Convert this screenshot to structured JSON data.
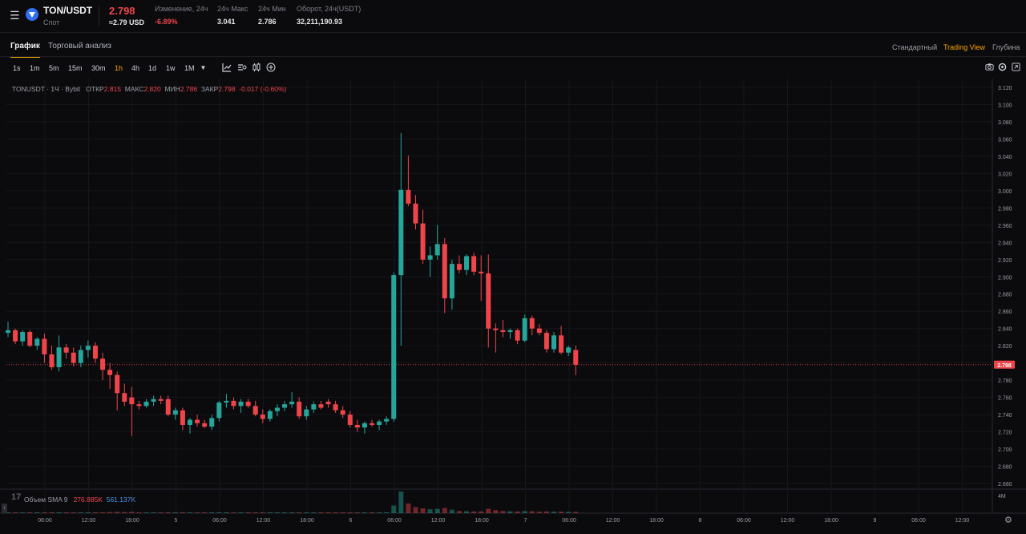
{
  "header": {
    "menu_icon": "menu-icon",
    "pair": "TON/USDT",
    "type": "Спот",
    "last_price": "2.798",
    "usd_price": "≈2.79 USD",
    "stats": [
      {
        "label": "Изменение, 24ч",
        "value": "-6.89%",
        "color": "red"
      },
      {
        "label": "24ч Макс",
        "value": "3.041",
        "color": "white"
      },
      {
        "label": "24ч Мин",
        "value": "2.786",
        "color": "white"
      },
      {
        "label": "Оборот, 24ч(USDT)",
        "value": "32,211,190.93",
        "color": "white"
      }
    ]
  },
  "tabs": [
    "График",
    "Торговый анализ"
  ],
  "views": [
    "Стандартный",
    "Trading View",
    "Глубина"
  ],
  "timeframes": [
    "1s",
    "1m",
    "5m",
    "15m",
    "30m",
    "1h",
    "4h",
    "1d",
    "1w",
    "1M"
  ],
  "active_timeframe": "1h",
  "toolbar_icons": [
    "indicator-icon",
    "bar-style-icon",
    "candle-style-icon",
    "add-icon"
  ],
  "right_icons": [
    "camera-icon",
    "settings-icon",
    "fullscreen-icon"
  ],
  "legend": {
    "symbol": "TONUSDT · 1Ч · Bybit",
    "open_label": "ОТКР",
    "open": "2.815",
    "high_label": "МАКС",
    "high": "2.820",
    "low_label": "МИН",
    "low": "2.786",
    "close_label": "ЗАКР",
    "close": "2.798",
    "change": "-0.017 (-0.60%)"
  },
  "volume_legend": {
    "label": "Объем SMA 9",
    "value1": "276.885K",
    "value2": "561.137K"
  },
  "tv_badge": "17",
  "colors": {
    "up": "#26a69a",
    "down": "#ef454a",
    "accent": "#f7a600",
    "bg": "#0b0b0e"
  },
  "chart_data": {
    "type": "candlestick",
    "timeframe": "1h",
    "price_axis_ticks": [
      "3.120",
      "3.100",
      "3.080",
      "3.060",
      "3.040",
      "3.020",
      "3.000",
      "2.980",
      "2.960",
      "2.940",
      "2.920",
      "2.900",
      "2.880",
      "2.860",
      "2.840",
      "2.820",
      "2.800",
      "2.780",
      "2.760",
      "2.740",
      "2.720",
      "2.700",
      "2.680",
      "2.660"
    ],
    "ylim": [
      2.655,
      3.125
    ],
    "current_price_label": "2.798",
    "current_price": 2.798,
    "volume_axis_label": "4M",
    "time_axis_labels": [
      "06:00",
      "12:00",
      "18:00",
      "5",
      "06:00",
      "12:00",
      "18:00",
      "6",
      "06:00",
      "12:00",
      "18:00",
      "7",
      "06:00",
      "12:00",
      "18:00",
      "8",
      "06:00",
      "12:00",
      "18:00",
      "9",
      "06:00",
      "12:00"
    ],
    "candles": [
      {
        "o": 2.835,
        "h": 2.848,
        "l": 2.83,
        "c": 2.838
      },
      {
        "o": 2.838,
        "h": 2.84,
        "l": 2.822,
        "c": 2.825
      },
      {
        "o": 2.825,
        "h": 2.838,
        "l": 2.82,
        "c": 2.836
      },
      {
        "o": 2.836,
        "h": 2.838,
        "l": 2.818,
        "c": 2.82
      },
      {
        "o": 2.82,
        "h": 2.83,
        "l": 2.815,
        "c": 2.828
      },
      {
        "o": 2.828,
        "h": 2.834,
        "l": 2.8,
        "c": 2.81
      },
      {
        "o": 2.81,
        "h": 2.82,
        "l": 2.792,
        "c": 2.795
      },
      {
        "o": 2.795,
        "h": 2.832,
        "l": 2.79,
        "c": 2.818
      },
      {
        "o": 2.818,
        "h": 2.822,
        "l": 2.805,
        "c": 2.812
      },
      {
        "o": 2.812,
        "h": 2.818,
        "l": 2.796,
        "c": 2.8
      },
      {
        "o": 2.8,
        "h": 2.82,
        "l": 2.795,
        "c": 2.815
      },
      {
        "o": 2.815,
        "h": 2.826,
        "l": 2.806,
        "c": 2.82
      },
      {
        "o": 2.82,
        "h": 2.824,
        "l": 2.8,
        "c": 2.805
      },
      {
        "o": 2.805,
        "h": 2.812,
        "l": 2.78,
        "c": 2.792
      },
      {
        "o": 2.792,
        "h": 2.8,
        "l": 2.77,
        "c": 2.786
      },
      {
        "o": 2.786,
        "h": 2.79,
        "l": 2.745,
        "c": 2.765
      },
      {
        "o": 2.765,
        "h": 2.776,
        "l": 2.75,
        "c": 2.755
      },
      {
        "o": 2.76,
        "h": 2.772,
        "l": 2.715,
        "c": 2.752
      },
      {
        "o": 2.752,
        "h": 2.756,
        "l": 2.746,
        "c": 2.75
      },
      {
        "o": 2.75,
        "h": 2.758,
        "l": 2.748,
        "c": 2.755
      },
      {
        "o": 2.755,
        "h": 2.762,
        "l": 2.75,
        "c": 2.758
      },
      {
        "o": 2.758,
        "h": 2.762,
        "l": 2.752,
        "c": 2.756
      },
      {
        "o": 2.758,
        "h": 2.762,
        "l": 2.738,
        "c": 2.74
      },
      {
        "o": 2.74,
        "h": 2.748,
        "l": 2.734,
        "c": 2.745
      },
      {
        "o": 2.745,
        "h": 2.748,
        "l": 2.722,
        "c": 2.728
      },
      {
        "o": 2.728,
        "h": 2.736,
        "l": 2.718,
        "c": 2.734
      },
      {
        "o": 2.734,
        "h": 2.74,
        "l": 2.726,
        "c": 2.73
      },
      {
        "o": 2.73,
        "h": 2.734,
        "l": 2.724,
        "c": 2.726
      },
      {
        "o": 2.726,
        "h": 2.74,
        "l": 2.722,
        "c": 2.736
      },
      {
        "o": 2.736,
        "h": 2.756,
        "l": 2.732,
        "c": 2.754
      },
      {
        "o": 2.754,
        "h": 2.764,
        "l": 2.748,
        "c": 2.756
      },
      {
        "o": 2.756,
        "h": 2.76,
        "l": 2.746,
        "c": 2.75
      },
      {
        "o": 2.75,
        "h": 2.758,
        "l": 2.742,
        "c": 2.755
      },
      {
        "o": 2.755,
        "h": 2.758,
        "l": 2.748,
        "c": 2.75
      },
      {
        "o": 2.75,
        "h": 2.756,
        "l": 2.738,
        "c": 2.74
      },
      {
        "o": 2.74,
        "h": 2.746,
        "l": 2.73,
        "c": 2.735
      },
      {
        "o": 2.735,
        "h": 2.746,
        "l": 2.732,
        "c": 2.744
      },
      {
        "o": 2.744,
        "h": 2.752,
        "l": 2.738,
        "c": 2.748
      },
      {
        "o": 2.748,
        "h": 2.756,
        "l": 2.744,
        "c": 2.752
      },
      {
        "o": 2.752,
        "h": 2.766,
        "l": 2.748,
        "c": 2.755
      },
      {
        "o": 2.755,
        "h": 2.76,
        "l": 2.735,
        "c": 2.738
      },
      {
        "o": 2.738,
        "h": 2.75,
        "l": 2.734,
        "c": 2.746
      },
      {
        "o": 2.746,
        "h": 2.755,
        "l": 2.742,
        "c": 2.752
      },
      {
        "o": 2.752,
        "h": 2.756,
        "l": 2.746,
        "c": 2.748
      },
      {
        "o": 2.755,
        "h": 2.758,
        "l": 2.748,
        "c": 2.752
      },
      {
        "o": 2.752,
        "h": 2.756,
        "l": 2.742,
        "c": 2.745
      },
      {
        "o": 2.745,
        "h": 2.75,
        "l": 2.736,
        "c": 2.74
      },
      {
        "o": 2.74,
        "h": 2.744,
        "l": 2.725,
        "c": 2.728
      },
      {
        "o": 2.728,
        "h": 2.734,
        "l": 2.72,
        "c": 2.725
      },
      {
        "o": 2.725,
        "h": 2.732,
        "l": 2.718,
        "c": 2.73
      },
      {
        "o": 2.73,
        "h": 2.734,
        "l": 2.726,
        "c": 2.728
      },
      {
        "o": 2.728,
        "h": 2.734,
        "l": 2.722,
        "c": 2.732
      },
      {
        "o": 2.732,
        "h": 2.738,
        "l": 2.728,
        "c": 2.735
      },
      {
        "o": 2.735,
        "h": 2.905,
        "l": 2.732,
        "c": 2.902
      },
      {
        "o": 2.902,
        "h": 3.067,
        "l": 2.82,
        "c": 3.001
      },
      {
        "o": 3.001,
        "h": 3.041,
        "l": 2.982,
        "c": 2.985
      },
      {
        "o": 2.985,
        "h": 2.995,
        "l": 2.955,
        "c": 2.962
      },
      {
        "o": 2.962,
        "h": 2.978,
        "l": 2.915,
        "c": 2.92
      },
      {
        "o": 2.92,
        "h": 2.935,
        "l": 2.9,
        "c": 2.925
      },
      {
        "o": 2.925,
        "h": 2.96,
        "l": 2.92,
        "c": 2.938
      },
      {
        "o": 2.938,
        "h": 2.945,
        "l": 2.858,
        "c": 2.875
      },
      {
        "o": 2.875,
        "h": 2.92,
        "l": 2.862,
        "c": 2.915
      },
      {
        "o": 2.915,
        "h": 2.925,
        "l": 2.904,
        "c": 2.908
      },
      {
        "o": 2.908,
        "h": 2.926,
        "l": 2.902,
        "c": 2.924
      },
      {
        "o": 2.924,
        "h": 2.928,
        "l": 2.902,
        "c": 2.906
      },
      {
        "o": 2.906,
        "h": 2.925,
        "l": 2.872,
        "c": 2.904
      },
      {
        "o": 2.904,
        "h": 2.926,
        "l": 2.818,
        "c": 2.84
      },
      {
        "o": 2.84,
        "h": 2.846,
        "l": 2.812,
        "c": 2.838
      },
      {
        "o": 2.838,
        "h": 2.85,
        "l": 2.83,
        "c": 2.836
      },
      {
        "o": 2.836,
        "h": 2.84,
        "l": 2.828,
        "c": 2.838
      },
      {
        "o": 2.838,
        "h": 2.84,
        "l": 2.822,
        "c": 2.826
      },
      {
        "o": 2.826,
        "h": 2.856,
        "l": 2.824,
        "c": 2.852
      },
      {
        "o": 2.852,
        "h": 2.855,
        "l": 2.832,
        "c": 2.84
      },
      {
        "o": 2.84,
        "h": 2.845,
        "l": 2.832,
        "c": 2.835
      },
      {
        "o": 2.835,
        "h": 2.838,
        "l": 2.812,
        "c": 2.816
      },
      {
        "o": 2.816,
        "h": 2.836,
        "l": 2.812,
        "c": 2.832
      },
      {
        "o": 2.832,
        "h": 2.843,
        "l": 2.81,
        "c": 2.812
      },
      {
        "o": 2.812,
        "h": 2.82,
        "l": 2.808,
        "c": 2.818
      },
      {
        "o": 2.815,
        "h": 2.82,
        "l": 2.786,
        "c": 2.798
      }
    ],
    "volumes": [
      0.03,
      0.03,
      0.03,
      0.03,
      0.03,
      0.03,
      0.04,
      0.04,
      0.03,
      0.03,
      0.03,
      0.03,
      0.03,
      0.04,
      0.05,
      0.06,
      0.05,
      0.06,
      0.03,
      0.03,
      0.03,
      0.03,
      0.04,
      0.03,
      0.04,
      0.03,
      0.03,
      0.03,
      0.03,
      0.04,
      0.03,
      0.03,
      0.03,
      0.03,
      0.03,
      0.03,
      0.03,
      0.03,
      0.03,
      0.04,
      0.03,
      0.03,
      0.03,
      0.03,
      0.03,
      0.03,
      0.03,
      0.04,
      0.03,
      0.03,
      0.03,
      0.03,
      0.03,
      0.35,
      1.0,
      0.45,
      0.28,
      0.22,
      0.18,
      0.2,
      0.24,
      0.16,
      0.1,
      0.09,
      0.08,
      0.08,
      0.2,
      0.14,
      0.1,
      0.09,
      0.08,
      0.1,
      0.09,
      0.07,
      0.08,
      0.07,
      0.07,
      0.06,
      0.06
    ]
  }
}
